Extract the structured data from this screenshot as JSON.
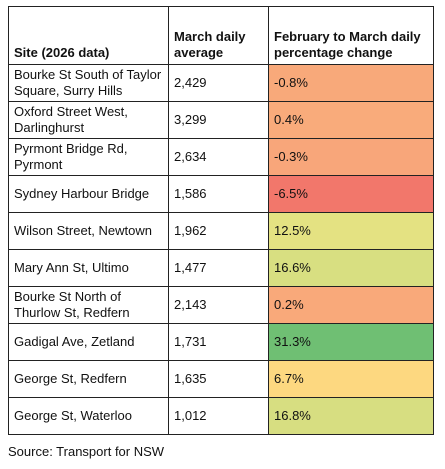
{
  "table": {
    "header": [
      "Site (2026 data)",
      "March daily average",
      "February to March daily percentage change"
    ],
    "rows": [
      [
        "Bourke St South of Taylor Square, Surry Hills",
        "2,429",
        "-0.8%"
      ],
      [
        "Oxford Street West, Darlinghurst",
        "3,299",
        "0.4%"
      ],
      [
        "Pyrmont Bridge Rd, Pyrmont",
        "2,634",
        "-0.3%"
      ],
      [
        "Sydney Harbour Bridge",
        "1,586",
        "-6.5%"
      ],
      [
        "Wilson Street, Newtown",
        "1,962",
        "12.5%"
      ],
      [
        "Mary Ann St, Ultimo",
        "1,477",
        "16.6%"
      ],
      [
        "Bourke St North of Thurlow St, Redfern",
        "2,143",
        "0.2%"
      ],
      [
        "Gadigal Ave, Zetland",
        "1,731",
        "31.3%"
      ],
      [
        "George St, Redfern",
        "1,635",
        "6.7%"
      ],
      [
        "George St, Waterloo",
        "1,012",
        "16.8%"
      ]
    ],
    "change_colors": [
      "#f8a97a",
      "#f9ab7b",
      "#f8a67a",
      "#f2776b",
      "#e4e282",
      "#d8df81",
      "#f9a97a",
      "#6fbf73",
      "#fdd880",
      "#d7de81"
    ]
  },
  "source": "Source: Transport for NSW"
}
